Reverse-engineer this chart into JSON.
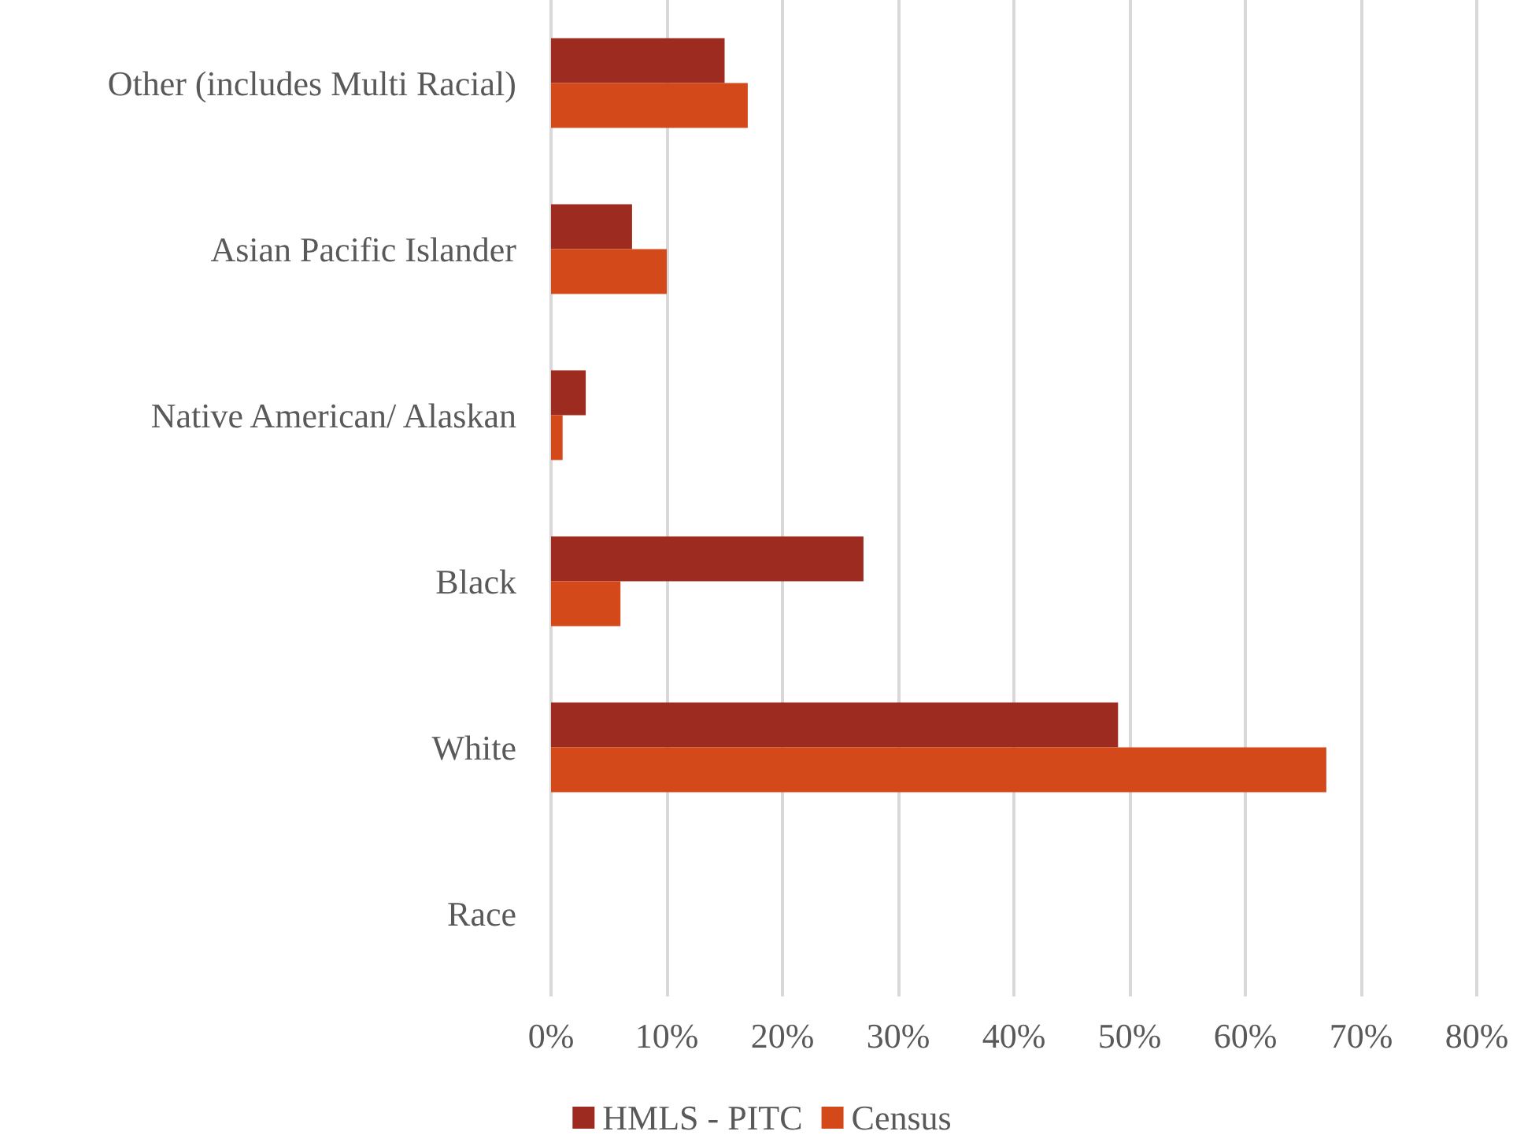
{
  "chart_data": {
    "type": "bar",
    "orientation": "horizontal",
    "categories": [
      "Other (includes Multi Racial)",
      "Asian Pacific Islander",
      "Native American/ Alaskan",
      "Black",
      "White",
      "Race"
    ],
    "series": [
      {
        "name": "HMLS - PITC",
        "color": "#9e2b20",
        "values": [
          15,
          7,
          3,
          27,
          49,
          null
        ]
      },
      {
        "name": "Census",
        "color": "#d4491a",
        "values": [
          17,
          10,
          1,
          6,
          67,
          null
        ]
      }
    ],
    "xlim": [
      0,
      80
    ],
    "xticks": [
      {
        "value": 0,
        "label": "0%"
      },
      {
        "value": 10,
        "label": "10%"
      },
      {
        "value": 20,
        "label": "20%"
      },
      {
        "value": 30,
        "label": "30%"
      },
      {
        "value": 40,
        "label": "40%"
      },
      {
        "value": 50,
        "label": "50%"
      },
      {
        "value": 60,
        "label": "60%"
      },
      {
        "value": 70,
        "label": "70%"
      },
      {
        "value": 80,
        "label": "80%"
      }
    ],
    "grid": "x",
    "legend": "bottom"
  }
}
